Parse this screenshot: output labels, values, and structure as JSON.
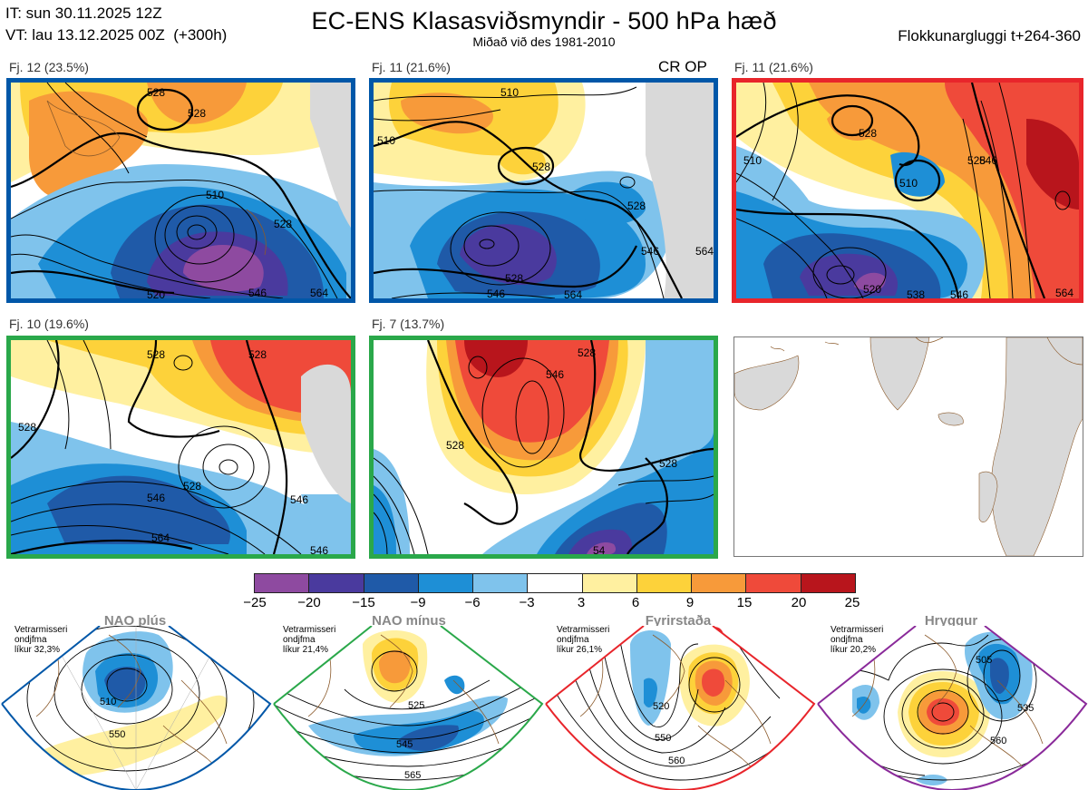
{
  "header": {
    "it": "IT: sun 30.11.2025 12Z",
    "vt": "VT: lau 13.12.2025 00Z  (+300h)",
    "title": "EC-ENS Klasasviðsmyndir - 500 hPa hæð",
    "subtitle": "Miðað við des 1981-2010",
    "window": "Flokkunargluggi t+264-360"
  },
  "panels": [
    {
      "label": "Fj. 12 (23.5%)",
      "border": "#0057a8",
      "contours": [
        "528",
        "528",
        "510",
        "528",
        "520",
        "546",
        "564"
      ]
    },
    {
      "label": "Fj. 11 (21.6%)",
      "border": "#0057a8",
      "contours": [
        "510",
        "510",
        "528",
        "528",
        "546",
        "564",
        "528",
        "546",
        "564"
      ]
    },
    {
      "label": "Fj. 11 (21.6%)",
      "border": "#e8252b",
      "contours": [
        "528",
        "510",
        "528",
        "510",
        "546",
        "520",
        "538",
        "546",
        "564"
      ]
    },
    {
      "label": "Fj. 10 (19.6%)",
      "border": "#2aa84a",
      "contours": [
        "528",
        "528",
        "528",
        "528",
        "546",
        "546",
        "564",
        "546"
      ]
    },
    {
      "label": "Fj. 7 (13.7%)",
      "border": "#2aa84a",
      "contours": [
        "528",
        "546",
        "528",
        "528",
        "54"
      ]
    }
  ],
  "cr_op": "CR OP",
  "colorbar": {
    "colors": [
      "#8e4aa0",
      "#4a3a9e",
      "#1f5aa8",
      "#1e8fd6",
      "#7fc3ec",
      "#ffffff",
      "#fff0a0",
      "#fdd23a",
      "#f79a3a",
      "#ef4a3a",
      "#b8151c"
    ],
    "ticks": [
      "−25",
      "−20",
      "−15",
      "−9",
      "−6",
      "−3",
      "3",
      "6",
      "9",
      "15",
      "20",
      "25"
    ]
  },
  "regimes": [
    {
      "name": "NAO plús",
      "info": "Vetrarmisseri\nondjfma\nlíkur 32,3%",
      "color": "#0057a8",
      "labels": [
        "510",
        "550"
      ]
    },
    {
      "name": "NAO mínus",
      "info": "Vetrarmisseri\nondjfma\nlíkur 21,4%",
      "color": "#2aa84a",
      "labels": [
        "525",
        "545",
        "565"
      ]
    },
    {
      "name": "Fyrirstaða",
      "info": "Vetrarmisseri\nondjfma\nlíkur 26,1%",
      "color": "#e8252b",
      "labels": [
        "520",
        "550",
        "560"
      ]
    },
    {
      "name": "Hryggur",
      "info": "Vetrarmisseri\nondjfma\nlíkur 20,2%",
      "color": "#ee66dd",
      "border": "#8a2a9a",
      "labels": [
        "505",
        "535",
        "560"
      ]
    }
  ]
}
